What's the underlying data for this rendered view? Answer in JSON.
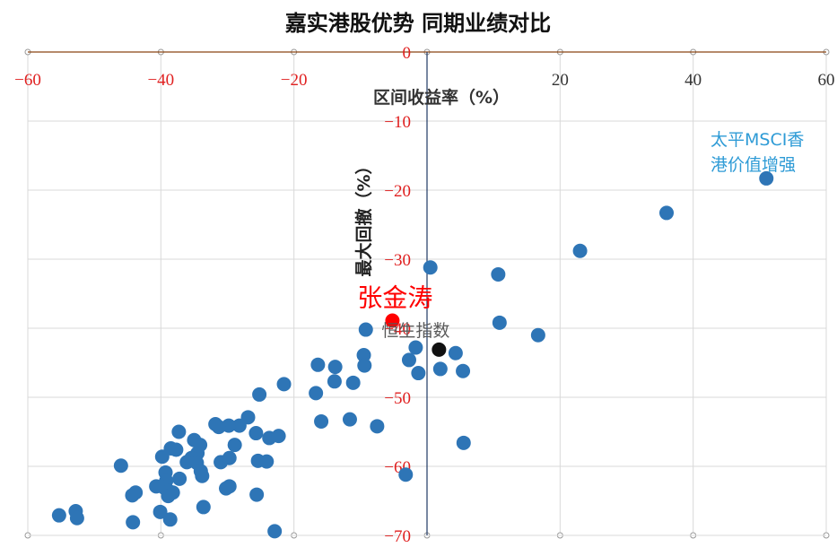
{
  "chart_data": {
    "type": "scatter",
    "title": "嘉实港股优势 同期业绩对比",
    "xlabel": "区间收益率（%）",
    "ylabel": "最大回撤（%）",
    "xlim": [
      -60,
      60
    ],
    "ylim": [
      -70,
      0
    ],
    "xticks": [
      -60,
      -40,
      -20,
      0,
      20,
      40,
      60
    ],
    "yticks": [
      0,
      -10,
      -20,
      -30,
      -40,
      -50,
      -60,
      -70
    ],
    "grid": true,
    "colors": {
      "points": "#2e75b6",
      "highlight": "#ff0000",
      "index": "#111111",
      "negative_ticks": "#e02020",
      "positive_ticks": "#333333",
      "x_axis_line": "#8b4513",
      "grid": "#d9d9d9"
    },
    "points": [
      [
        51,
        -18.3
      ],
      [
        36,
        -23.3
      ],
      [
        23,
        -28.8
      ],
      [
        0.5,
        -31.2
      ],
      [
        10.7,
        -32.2
      ],
      [
        10.9,
        -39.2
      ],
      [
        16.7,
        -41
      ],
      [
        -9.2,
        -40.2
      ],
      [
        -1.7,
        -42.8
      ],
      [
        4.3,
        -43.6
      ],
      [
        -2.7,
        -44.6
      ],
      [
        -9.5,
        -43.9
      ],
      [
        -9.4,
        -45.4
      ],
      [
        2,
        -45.9
      ],
      [
        5.4,
        -46.2
      ],
      [
        -1.3,
        -46.5
      ],
      [
        -16.4,
        -45.3
      ],
      [
        -13.8,
        -45.6
      ],
      [
        -13.9,
        -47.7
      ],
      [
        -11.1,
        -47.9
      ],
      [
        -21.5,
        -48.1
      ],
      [
        -25.2,
        -49.6
      ],
      [
        -16.7,
        -49.4
      ],
      [
        -15.9,
        -53.5
      ],
      [
        -11.6,
        -53.2
      ],
      [
        -7.5,
        -54.2
      ],
      [
        5.5,
        -56.6
      ],
      [
        -3.2,
        -61.2
      ],
      [
        -26.9,
        -52.9
      ],
      [
        -28.2,
        -54.1
      ],
      [
        -29.8,
        -54.1
      ],
      [
        -31.3,
        -54.3
      ],
      [
        -31.8,
        -53.9
      ],
      [
        -25.7,
        -55.2
      ],
      [
        -23.7,
        -55.9
      ],
      [
        -22.3,
        -55.6
      ],
      [
        -28.9,
        -56.9
      ],
      [
        -37.3,
        -55
      ],
      [
        -35,
        -56.2
      ],
      [
        -34.1,
        -56.9
      ],
      [
        -38.5,
        -57.4
      ],
      [
        -37.7,
        -57.6
      ],
      [
        -34.5,
        -58.1
      ],
      [
        -35.4,
        -58.8
      ],
      [
        -36.1,
        -59.4
      ],
      [
        -34.6,
        -59.5
      ],
      [
        -31,
        -59.4
      ],
      [
        -29.7,
        -58.8
      ],
      [
        -25.4,
        -59.2
      ],
      [
        -24.1,
        -59.3
      ],
      [
        -46,
        -59.9
      ],
      [
        -39.8,
        -58.6
      ],
      [
        -39.3,
        -60.9
      ],
      [
        -34,
        -60.7
      ],
      [
        -33.8,
        -61.4
      ],
      [
        -37.2,
        -61.8
      ],
      [
        -39.2,
        -62.1
      ],
      [
        -39.5,
        -63.1
      ],
      [
        -40.7,
        -62.9
      ],
      [
        -38.8,
        -63.6
      ],
      [
        -38.2,
        -63.8
      ],
      [
        -38.9,
        -64.3
      ],
      [
        -43.8,
        -63.8
      ],
      [
        -44.3,
        -64.2
      ],
      [
        -33.6,
        -65.9
      ],
      [
        -30.2,
        -63.2
      ],
      [
        -29.7,
        -62.9
      ],
      [
        -25.6,
        -64.1
      ],
      [
        -40.1,
        -66.6
      ],
      [
        -38.6,
        -67.7
      ],
      [
        -44.2,
        -68.1
      ],
      [
        -52.8,
        -66.5
      ],
      [
        -52.6,
        -67.5
      ],
      [
        -55.3,
        -67.1
      ],
      [
        -22.9,
        -69.4
      ]
    ],
    "highlight": {
      "label": "张金涛",
      "x": -5.2,
      "y": -38.9
    },
    "index": {
      "label": "恒生指数",
      "x": 1.8,
      "y": -43.1
    },
    "annotation": {
      "line1": "太平MSCI香",
      "line2": "港价值增强"
    }
  }
}
